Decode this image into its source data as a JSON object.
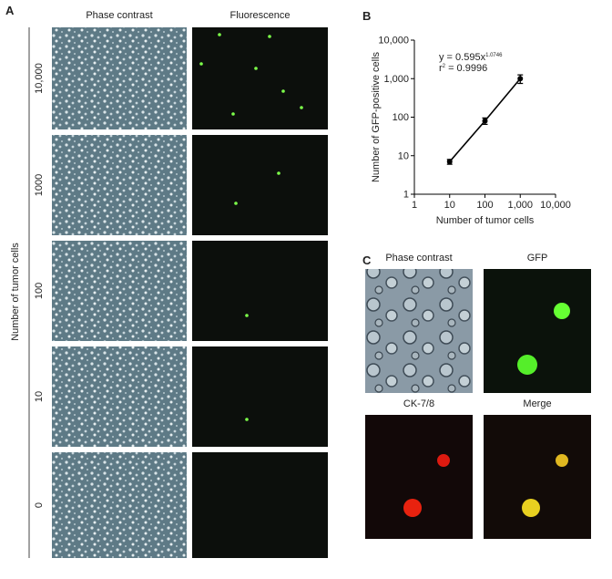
{
  "panel_a": {
    "label": "A",
    "columns": [
      "Phase contrast",
      "Fluorescence"
    ],
    "rows": [
      "10,000",
      "1000",
      "100",
      "10",
      "0"
    ],
    "y_label": "Number of tumor cells"
  },
  "chart_data": {
    "type": "line",
    "panel_label": "B",
    "x": [
      10,
      100,
      1000
    ],
    "values": [
      7,
      80,
      1000
    ],
    "errors": [
      1,
      15,
      250
    ],
    "color": "#000000",
    "xlim": [
      1,
      10000
    ],
    "ylim": [
      1,
      10000
    ],
    "log_scale": true,
    "xticks": [
      1,
      10,
      100,
      {
        "value": 1000,
        "label": "1,000"
      },
      {
        "value": 10000,
        "label": "10,000"
      }
    ],
    "yticks": [
      1,
      10,
      100,
      {
        "value": 1000,
        "label": "1,000"
      },
      {
        "value": 10000,
        "label": "10,000"
      }
    ],
    "xlabel": "Number of tumor cells",
    "ylabel": "Number of GFP-positive cells",
    "annotations": [
      {
        "parts": [
          "y = 0.595x",
          "1.0746"
        ]
      },
      {
        "parts": [
          "r",
          "2",
          " = 0.9996"
        ]
      }
    ]
  },
  "panel_c": {
    "label": "C",
    "images": [
      "Phase contrast",
      "GFP",
      "CK-7/8",
      "Merge"
    ]
  }
}
